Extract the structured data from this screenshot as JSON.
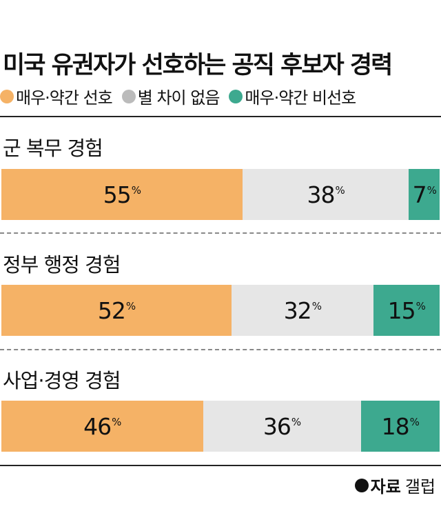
{
  "chart_data": {
    "type": "bar",
    "stacked": true,
    "orientation": "horizontal",
    "title": "미국 유권자가 선호하는 공직 후보자 경력",
    "categories": [
      "군 복무 경험",
      "정부 행정 경험",
      "사업·경영 경험"
    ],
    "series": [
      {
        "name": "매우·약간 선호",
        "color": "#F5B266",
        "values": [
          55,
          52,
          46
        ]
      },
      {
        "name": "별 차이 없음",
        "color": "#E6E6E6",
        "values": [
          38,
          32,
          36
        ]
      },
      {
        "name": "매우·약간 비선호",
        "color": "#3DA98F",
        "values": [
          7,
          15,
          18
        ]
      }
    ],
    "unit": "%",
    "legend_position": "top",
    "source_label": "자료",
    "source": "갤럽"
  },
  "colors": {
    "legend_neutral_dot": "#BBBBBB"
  }
}
